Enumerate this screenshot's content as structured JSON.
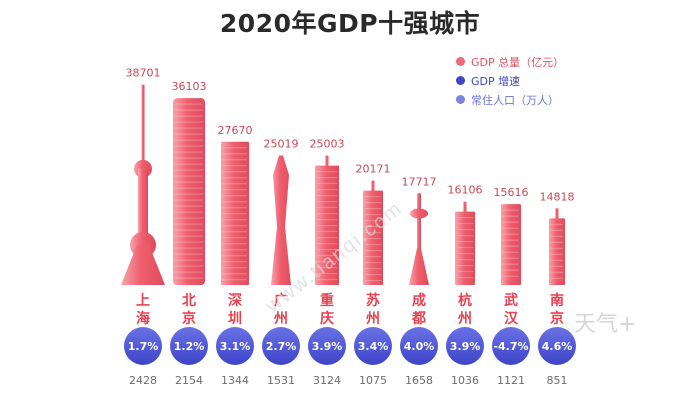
{
  "chart_data": {
    "type": "bar",
    "title": "2020年GDP十强城市",
    "categories": [
      "上海",
      "北京",
      "深圳",
      "广州",
      "重庆",
      "苏州",
      "成都",
      "杭州",
      "武汉",
      "南京"
    ],
    "series": [
      {
        "name": "GDP 总量（亿元）",
        "values": [
          38701,
          36103,
          27670,
          25019,
          25003,
          20171,
          17717,
          16106,
          15616,
          14818
        ]
      },
      {
        "name": "GDP 增速",
        "values": [
          "1.7%",
          "1.2%",
          "3.1%",
          "2.7%",
          "3.9%",
          "3.4%",
          "4.0%",
          "3.9%",
          "-4.7%",
          "4.6%"
        ]
      },
      {
        "name": "常住人口（万人）",
        "values": [
          2428,
          2154,
          1344,
          1531,
          3124,
          1075,
          1658,
          1036,
          1121,
          851
        ]
      }
    ],
    "ylim": [
      0,
      40000
    ]
  },
  "colors": {
    "bar": "#ef5f6e",
    "bar_light": "#f7a3ab",
    "label": "#c84a57",
    "city": "#e8404f",
    "circle": "#3d45c8",
    "population": "#6d6d6d"
  },
  "watermark": "www.tianqi.com",
  "watermark_logo": "天气+"
}
